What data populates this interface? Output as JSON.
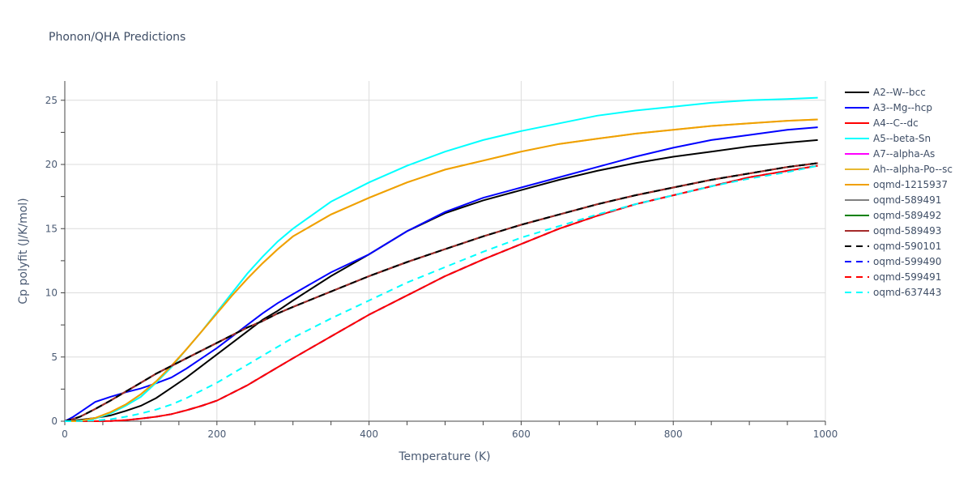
{
  "chart_data": {
    "type": "line",
    "title": "Phonon/QHA Predictions",
    "xlabel": "Temperature (K)",
    "ylabel": "Cp polyfit (J/K/mol)",
    "xlim": [
      0,
      1000
    ],
    "ylim": [
      0,
      26.5
    ],
    "x_ticks": [
      0,
      200,
      400,
      600,
      800,
      1000
    ],
    "y_ticks": [
      0,
      5,
      10,
      15,
      20,
      25
    ],
    "grid": true,
    "legend_position": "right",
    "x": [
      0,
      10,
      20,
      40,
      60,
      80,
      100,
      120,
      140,
      160,
      180,
      200,
      220,
      240,
      260,
      280,
      300,
      350,
      400,
      450,
      500,
      550,
      600,
      650,
      700,
      750,
      800,
      850,
      900,
      950,
      990
    ],
    "series": [
      {
        "name": "A2--W--bcc",
        "color": "#000000",
        "dash": "solid",
        "values": [
          0,
          0.05,
          0.1,
          0.25,
          0.45,
          0.8,
          1.2,
          1.8,
          2.6,
          3.4,
          4.3,
          5.2,
          6.1,
          7.0,
          7.9,
          8.6,
          9.4,
          11.3,
          13.0,
          14.8,
          16.2,
          17.2,
          18.0,
          18.8,
          19.5,
          20.1,
          20.6,
          21.0,
          21.4,
          21.7,
          21.9
        ]
      },
      {
        "name": "A3--Mg--hcp",
        "color": "#0000ff",
        "dash": "solid",
        "values": [
          0,
          0.3,
          0.7,
          1.5,
          1.9,
          2.25,
          2.55,
          2.95,
          3.4,
          4.1,
          4.9,
          5.7,
          6.6,
          7.5,
          8.4,
          9.2,
          9.9,
          11.6,
          13.0,
          14.8,
          16.3,
          17.4,
          18.2,
          19.0,
          19.8,
          20.6,
          21.3,
          21.9,
          22.3,
          22.7,
          22.9
        ]
      },
      {
        "name": "A4--C--dc",
        "color": "#ff0000",
        "dash": "solid",
        "values": [
          0,
          0,
          0,
          0,
          0.02,
          0.08,
          0.2,
          0.35,
          0.55,
          0.85,
          1.2,
          1.6,
          2.2,
          2.8,
          3.5,
          4.2,
          4.9,
          6.6,
          8.3,
          9.8,
          11.3,
          12.6,
          13.8,
          15.0,
          16.0,
          16.9,
          17.6,
          18.3,
          19.0,
          19.5,
          19.9
        ]
      },
      {
        "name": "A5--beta-Sn",
        "color": "#00ffff",
        "dash": "solid",
        "values": [
          0,
          0,
          0.02,
          0.2,
          0.6,
          1.2,
          1.9,
          3.0,
          4.2,
          5.6,
          7.0,
          8.5,
          10.0,
          11.5,
          12.8,
          14.0,
          15.0,
          17.1,
          18.6,
          19.9,
          21.0,
          21.9,
          22.6,
          23.2,
          23.8,
          24.2,
          24.5,
          24.8,
          25.0,
          25.1,
          25.2
        ]
      },
      {
        "name": "A7--alpha-As",
        "color": "#ff00ff",
        "dash": "solid",
        "values": [
          0,
          0.15,
          0.35,
          0.95,
          1.6,
          2.3,
          3.0,
          3.7,
          4.3,
          4.9,
          5.5,
          6.1,
          6.7,
          7.3,
          7.8,
          8.4,
          8.9,
          10.1,
          11.3,
          12.4,
          13.4,
          14.4,
          15.3,
          16.1,
          16.9,
          17.6,
          18.2,
          18.8,
          19.3,
          19.8,
          20.1
        ]
      },
      {
        "name": "Ah--alpha-Po--sc",
        "color": "#e8b931",
        "dash": "solid",
        "values": [
          0,
          0,
          0.03,
          0.25,
          0.7,
          1.3,
          2.1,
          3.1,
          4.3,
          5.6,
          7.0,
          8.4,
          9.8,
          11.1,
          12.3,
          13.4,
          14.4,
          16.1,
          17.4,
          18.6,
          19.6,
          20.3,
          21.0,
          21.6,
          22.0,
          22.4,
          22.7,
          23.0,
          23.2,
          23.4,
          23.5
        ]
      },
      {
        "name": "oqmd-1215937",
        "color": "#f0a000",
        "dash": "solid",
        "values": [
          0,
          0,
          0.03,
          0.25,
          0.7,
          1.3,
          2.1,
          3.1,
          4.3,
          5.6,
          7.0,
          8.4,
          9.8,
          11.1,
          12.3,
          13.4,
          14.4,
          16.1,
          17.4,
          18.6,
          19.6,
          20.3,
          21.0,
          21.6,
          22.0,
          22.4,
          22.7,
          23.0,
          23.2,
          23.4,
          23.5
        ]
      },
      {
        "name": "oqmd-589491",
        "color": "#808080",
        "dash": "solid",
        "values": [
          0,
          0.15,
          0.35,
          0.95,
          1.6,
          2.3,
          3.0,
          3.7,
          4.3,
          4.9,
          5.5,
          6.1,
          6.7,
          7.3,
          7.8,
          8.4,
          8.9,
          10.1,
          11.3,
          12.4,
          13.4,
          14.4,
          15.3,
          16.1,
          16.9,
          17.6,
          18.2,
          18.8,
          19.3,
          19.8,
          20.1
        ]
      },
      {
        "name": "oqmd-589492",
        "color": "#008000",
        "dash": "solid",
        "values": [
          0,
          0.15,
          0.35,
          0.95,
          1.6,
          2.3,
          3.0,
          3.7,
          4.3,
          4.9,
          5.5,
          6.1,
          6.7,
          7.3,
          7.8,
          8.4,
          8.9,
          10.1,
          11.3,
          12.4,
          13.4,
          14.4,
          15.3,
          16.1,
          16.9,
          17.6,
          18.2,
          18.8,
          19.3,
          19.8,
          20.1
        ]
      },
      {
        "name": "oqmd-589493",
        "color": "#a52a2a",
        "dash": "solid",
        "values": [
          0,
          0.15,
          0.35,
          0.95,
          1.6,
          2.3,
          3.0,
          3.7,
          4.3,
          4.9,
          5.5,
          6.1,
          6.7,
          7.3,
          7.8,
          8.4,
          8.9,
          10.1,
          11.3,
          12.4,
          13.4,
          14.4,
          15.3,
          16.1,
          16.9,
          17.6,
          18.2,
          18.8,
          19.3,
          19.8,
          20.1
        ]
      },
      {
        "name": "oqmd-590101",
        "color": "#000000",
        "dash": "dash",
        "values": [
          0,
          0.15,
          0.35,
          0.95,
          1.6,
          2.3,
          3.0,
          3.7,
          4.3,
          4.9,
          5.5,
          6.1,
          6.7,
          7.3,
          7.8,
          8.4,
          8.9,
          10.1,
          11.3,
          12.4,
          13.4,
          14.4,
          15.3,
          16.1,
          16.9,
          17.6,
          18.2,
          18.8,
          19.3,
          19.8,
          20.1
        ]
      },
      {
        "name": "oqmd-599490",
        "color": "#0000ff",
        "dash": "dash",
        "values": [
          0,
          0,
          0,
          0,
          0.02,
          0.08,
          0.2,
          0.35,
          0.55,
          0.85,
          1.2,
          1.6,
          2.2,
          2.8,
          3.5,
          4.2,
          4.9,
          6.6,
          8.3,
          9.8,
          11.3,
          12.6,
          13.8,
          15.0,
          16.0,
          16.9,
          17.6,
          18.3,
          19.0,
          19.5,
          19.9
        ]
      },
      {
        "name": "oqmd-599491",
        "color": "#ff0000",
        "dash": "dash",
        "values": [
          0,
          0,
          0,
          0,
          0.02,
          0.08,
          0.2,
          0.35,
          0.55,
          0.85,
          1.2,
          1.6,
          2.2,
          2.8,
          3.5,
          4.2,
          4.9,
          6.6,
          8.3,
          9.8,
          11.3,
          12.6,
          13.8,
          15.0,
          16.0,
          16.9,
          17.6,
          18.3,
          19.0,
          19.5,
          19.9
        ]
      },
      {
        "name": "oqmd-637443",
        "color": "#00ffff",
        "dash": "dash",
        "values": [
          0,
          0,
          0.01,
          0.05,
          0.15,
          0.35,
          0.6,
          0.9,
          1.3,
          1.8,
          2.4,
          3.0,
          3.7,
          4.4,
          5.1,
          5.8,
          6.5,
          8.0,
          9.4,
          10.8,
          12.0,
          13.2,
          14.3,
          15.2,
          16.1,
          16.9,
          17.6,
          18.3,
          18.9,
          19.4,
          19.9
        ]
      }
    ]
  }
}
